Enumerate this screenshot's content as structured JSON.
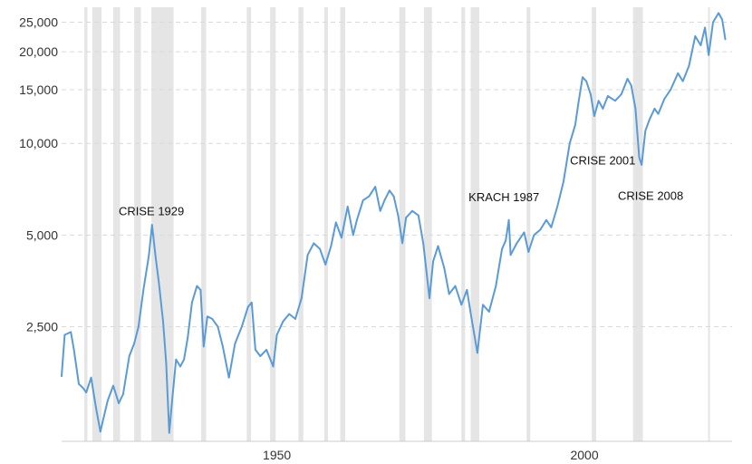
{
  "chart_data": {
    "type": "line",
    "title": "",
    "xlabel": "",
    "ylabel": "",
    "y_scale": "log",
    "ylim": [
      1050,
      28000
    ],
    "xlim": [
      1915,
      2024
    ],
    "grid": "horizontal dashed",
    "line_color": "#5b9bd5",
    "band_color": "#e5e5e5",
    "y_ticks": [
      {
        "value": 2500,
        "label": "2,500"
      },
      {
        "value": 5000,
        "label": "5,000"
      },
      {
        "value": 10000,
        "label": "10,000"
      },
      {
        "value": 15000,
        "label": "15,000"
      },
      {
        "value": 20000,
        "label": "20,000"
      },
      {
        "value": 25000,
        "label": "25,000"
      }
    ],
    "x_ticks": [
      {
        "value": 1950,
        "label": "1950"
      },
      {
        "value": 2000,
        "label": "2000"
      }
    ],
    "recession_bands": [
      [
        1918.7,
        1919.2
      ],
      [
        1920.0,
        1921.5
      ],
      [
        1923.4,
        1924.5
      ],
      [
        1926.8,
        1927.9
      ],
      [
        1929.6,
        1933.2
      ],
      [
        1937.7,
        1938.5
      ],
      [
        1945.1,
        1945.8
      ],
      [
        1948.9,
        1949.8
      ],
      [
        1953.5,
        1954.3
      ],
      [
        1957.7,
        1958.3
      ],
      [
        1960.3,
        1961.1
      ],
      [
        1969.9,
        1970.9
      ],
      [
        1973.9,
        1975.2
      ],
      [
        1980.0,
        1980.6
      ],
      [
        1981.5,
        1982.9
      ],
      [
        1990.6,
        1991.2
      ],
      [
        2001.2,
        2001.9
      ],
      [
        2007.9,
        2009.5
      ],
      [
        2020.1,
        2020.4
      ]
    ],
    "series": [
      {
        "values": [
          [
            1915.0,
            1720
          ],
          [
            1915.5,
            2350
          ],
          [
            1916.5,
            2400
          ],
          [
            1917.0,
            2100
          ],
          [
            1917.8,
            1620
          ],
          [
            1918.5,
            1570
          ],
          [
            1919.0,
            1520
          ],
          [
            1919.8,
            1700
          ],
          [
            1920.6,
            1350
          ],
          [
            1921.3,
            1130
          ],
          [
            1921.8,
            1250
          ],
          [
            1922.5,
            1430
          ],
          [
            1923.4,
            1600
          ],
          [
            1924.3,
            1400
          ],
          [
            1925.0,
            1500
          ],
          [
            1926.0,
            2000
          ],
          [
            1926.8,
            2200
          ],
          [
            1927.5,
            2500
          ],
          [
            1928.3,
            3300
          ],
          [
            1929.2,
            4300
          ],
          [
            1929.7,
            5400
          ],
          [
            1930.3,
            4200
          ],
          [
            1930.8,
            3500
          ],
          [
            1931.5,
            2600
          ],
          [
            1932.0,
            1900
          ],
          [
            1932.5,
            1120
          ],
          [
            1933.0,
            1450
          ],
          [
            1933.6,
            1950
          ],
          [
            1934.3,
            1850
          ],
          [
            1934.9,
            1950
          ],
          [
            1935.5,
            2300
          ],
          [
            1936.2,
            3000
          ],
          [
            1937.0,
            3400
          ],
          [
            1937.6,
            3300
          ],
          [
            1938.1,
            2150
          ],
          [
            1938.7,
            2700
          ],
          [
            1939.5,
            2650
          ],
          [
            1940.4,
            2500
          ],
          [
            1941.2,
            2150
          ],
          [
            1942.2,
            1700
          ],
          [
            1943.2,
            2200
          ],
          [
            1944.3,
            2500
          ],
          [
            1945.3,
            2900
          ],
          [
            1945.9,
            3000
          ],
          [
            1946.5,
            2100
          ],
          [
            1947.3,
            2000
          ],
          [
            1948.3,
            2100
          ],
          [
            1949.4,
            1850
          ],
          [
            1950.0,
            2350
          ],
          [
            1951.0,
            2600
          ],
          [
            1952.0,
            2750
          ],
          [
            1953.0,
            2650
          ],
          [
            1954.0,
            3100
          ],
          [
            1955.0,
            4300
          ],
          [
            1956.0,
            4700
          ],
          [
            1957.0,
            4500
          ],
          [
            1957.9,
            4000
          ],
          [
            1958.8,
            4600
          ],
          [
            1959.6,
            5500
          ],
          [
            1960.5,
            4900
          ],
          [
            1961.5,
            6200
          ],
          [
            1962.4,
            5000
          ],
          [
            1963.0,
            5600
          ],
          [
            1964.0,
            6500
          ],
          [
            1965.0,
            6700
          ],
          [
            1966.0,
            7200
          ],
          [
            1966.8,
            6000
          ],
          [
            1967.5,
            6500
          ],
          [
            1968.3,
            7000
          ],
          [
            1969.0,
            6700
          ],
          [
            1969.7,
            5800
          ],
          [
            1970.4,
            4700
          ],
          [
            1971.0,
            5700
          ],
          [
            1972.0,
            6000
          ],
          [
            1973.0,
            5800
          ],
          [
            1973.8,
            4700
          ],
          [
            1974.8,
            3100
          ],
          [
            1975.4,
            4100
          ],
          [
            1976.2,
            4600
          ],
          [
            1977.2,
            3900
          ],
          [
            1978.0,
            3200
          ],
          [
            1979.0,
            3400
          ],
          [
            1980.0,
            2950
          ],
          [
            1980.9,
            3300
          ],
          [
            1981.6,
            2700
          ],
          [
            1982.6,
            2050
          ],
          [
            1983.5,
            2950
          ],
          [
            1984.5,
            2800
          ],
          [
            1985.6,
            3400
          ],
          [
            1986.6,
            4500
          ],
          [
            1987.2,
            4800
          ],
          [
            1987.7,
            5600
          ],
          [
            1988.0,
            4300
          ],
          [
            1989.0,
            4700
          ],
          [
            1990.2,
            5100
          ],
          [
            1990.9,
            4400
          ],
          [
            1991.8,
            5000
          ],
          [
            1992.8,
            5200
          ],
          [
            1993.8,
            5600
          ],
          [
            1994.6,
            5300
          ],
          [
            1995.6,
            6200
          ],
          [
            1996.6,
            7500
          ],
          [
            1997.6,
            10000
          ],
          [
            1998.5,
            11500
          ],
          [
            1999.0,
            13500
          ],
          [
            1999.7,
            16500
          ],
          [
            2000.3,
            16000
          ],
          [
            2001.0,
            14500
          ],
          [
            2001.6,
            12300
          ],
          [
            2002.3,
            13800
          ],
          [
            2003.0,
            13000
          ],
          [
            2003.8,
            14300
          ],
          [
            2005.0,
            13800
          ],
          [
            2006.0,
            14500
          ],
          [
            2007.0,
            16300
          ],
          [
            2007.6,
            15500
          ],
          [
            2008.3,
            13000
          ],
          [
            2008.9,
            9000
          ],
          [
            2009.3,
            8500
          ],
          [
            2009.9,
            11000
          ],
          [
            2010.6,
            12000
          ],
          [
            2011.4,
            13000
          ],
          [
            2012.0,
            12500
          ],
          [
            2013.0,
            14000
          ],
          [
            2014.0,
            15000
          ],
          [
            2015.2,
            17000
          ],
          [
            2016.0,
            16000
          ],
          [
            2017.0,
            18000
          ],
          [
            2018.0,
            22500
          ],
          [
            2018.9,
            21000
          ],
          [
            2019.6,
            24000
          ],
          [
            2020.2,
            19500
          ],
          [
            2020.9,
            25000
          ],
          [
            2021.8,
            26800
          ],
          [
            2022.4,
            25500
          ],
          [
            2022.9,
            22000
          ]
        ]
      }
    ],
    "annotations": [
      {
        "text": "CRISE 1929",
        "x": 1929.6,
        "y": 5500
      },
      {
        "text": "KRACH 1987",
        "x": 1987.5,
        "y": 6200
      },
      {
        "text": "CRISE 2001",
        "x": 2001.5,
        "y": 9000
      },
      {
        "text": "CRISE 2008",
        "x": 2008.7,
        "y": 6800
      }
    ]
  }
}
